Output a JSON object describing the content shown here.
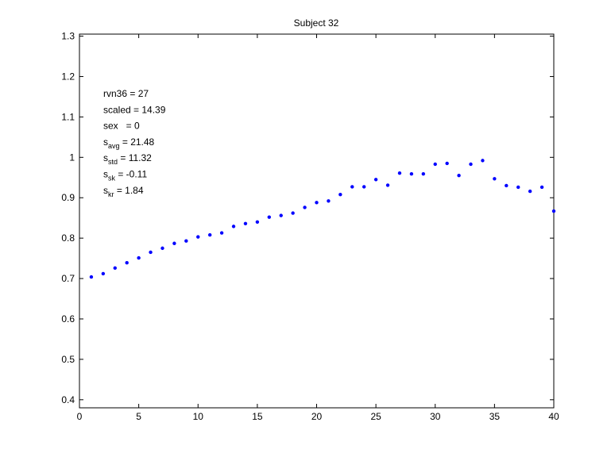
{
  "chart_data": {
    "type": "scatter",
    "title": "Subject 32",
    "xlabel": "",
    "ylabel": "",
    "xlim": [
      0,
      40
    ],
    "ylim": [
      0.38,
      1.305
    ],
    "xticks": [
      "0",
      "5",
      "10",
      "15",
      "20",
      "25",
      "30",
      "35",
      "40"
    ],
    "xtick_values": [
      0,
      5,
      10,
      15,
      20,
      25,
      30,
      35,
      40
    ],
    "yticks": [
      "0.4",
      "0.5",
      "0.6",
      "0.7",
      "0.8",
      "0.9",
      "1",
      "1.1",
      "1.2",
      "1.3"
    ],
    "ytick_values": [
      0.4,
      0.5,
      0.6,
      0.7,
      0.8,
      0.9,
      1.0,
      1.1,
      1.2,
      1.3
    ],
    "grid": false,
    "marker_color": "#0000ff",
    "annotations": [
      {
        "base": "rvn36 = 27",
        "sub": "",
        "rest": ""
      },
      {
        "base": "scaled = 14.39",
        "sub": "",
        "rest": ""
      },
      {
        "base": "sex   = 0",
        "sub": "",
        "rest": ""
      },
      {
        "base": "s",
        "sub": "avg",
        "rest": " = 21.48"
      },
      {
        "base": "s",
        "sub": "std",
        "rest": " = 11.32"
      },
      {
        "base": "s",
        "sub": "sk",
        "rest": " = -0.11"
      },
      {
        "base": "s",
        "sub": "kr",
        "rest": " = 1.84"
      }
    ],
    "x": [
      1,
      2,
      3,
      4,
      5,
      6,
      7,
      8,
      9,
      10,
      11,
      12,
      13,
      14,
      15,
      16,
      17,
      18,
      19,
      20,
      21,
      22,
      23,
      24,
      25,
      26,
      27,
      28,
      29,
      30,
      31,
      32,
      33,
      34,
      35,
      36,
      37,
      38,
      39,
      40
    ],
    "y": [
      0.704,
      0.712,
      0.726,
      0.739,
      0.751,
      0.765,
      0.775,
      0.787,
      0.793,
      0.803,
      0.808,
      0.813,
      0.829,
      0.836,
      0.84,
      0.852,
      0.856,
      0.862,
      0.876,
      0.888,
      0.892,
      0.908,
      0.927,
      0.927,
      0.945,
      0.931,
      0.961,
      0.959,
      0.959,
      0.983,
      0.985,
      0.955,
      0.983,
      0.992,
      0.947,
      0.93,
      0.926,
      0.916,
      0.926,
      0.867
    ]
  }
}
